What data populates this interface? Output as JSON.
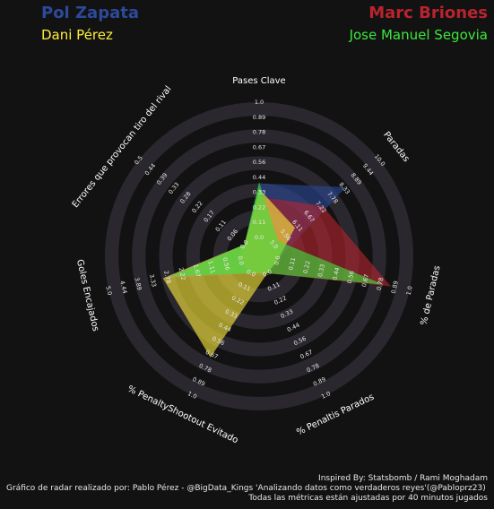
{
  "players": [
    {
      "name": "Pol Zapata",
      "color": "#2c4a9a"
    },
    {
      "name": "Marc Briones",
      "color": "#b8242e"
    },
    {
      "name": "Dani Pérez",
      "color": "#ffee3a"
    },
    {
      "name": "Jose Manuel Segovia",
      "color": "#3ce63c"
    }
  ],
  "footer": {
    "inspired": "Inspired By: Statsbomb / Rami Moghadam",
    "credit": "Gráfico de radar realizado por: Pablo Pérez - @BigData_Kings 'Analizando datos como verdaderos reyes'(@Pabloprz23)",
    "note": "Todas las métricas están ajustadas por 40 minutos jugados"
  },
  "chart_data": {
    "type": "radar",
    "axes": [
      {
        "label": "Pases Clave",
        "ticks": [
          "0.0",
          "0.11",
          "0.22",
          "0.33",
          "0.44",
          "0.56",
          "0.67",
          "0.78",
          "0.89",
          "1.0"
        ]
      },
      {
        "label": "Paradas",
        "ticks": [
          "5.0",
          "5.56",
          "6.11",
          "6.67",
          "7.22",
          "7.78",
          "8.33",
          "8.89",
          "9.44",
          "10.0"
        ]
      },
      {
        "label": "% de Paradas",
        "ticks": [
          "0.0",
          "0.11",
          "0.22",
          "0.33",
          "0.44",
          "0.56",
          "0.67",
          "0.78",
          "0.89",
          "1.0"
        ]
      },
      {
        "label": "% Penaltis Parados",
        "ticks": [
          "0.0",
          "0.11",
          "0.22",
          "0.33",
          "0.44",
          "0.56",
          "0.67",
          "0.78",
          "0.89",
          "1.0"
        ]
      },
      {
        "label": "% PenaltyShootout Evitado",
        "ticks": [
          "0.0",
          "0.11",
          "0.22",
          "0.33",
          "0.44",
          "0.56",
          "0.67",
          "0.78",
          "0.89",
          "1.0"
        ]
      },
      {
        "label": "Goles Encajados",
        "ticks": [
          "0.0",
          "0.56",
          "1.11",
          "1.67",
          "2.22",
          "2.78",
          "3.33",
          "3.89",
          "4.44",
          "5.0"
        ]
      },
      {
        "label": "Errores que provocan tiro del rival",
        "ticks": [
          "0.0",
          "0.06",
          "0.11",
          "0.17",
          "0.22",
          "0.28",
          "0.33",
          "0.39",
          "0.44",
          "0.5"
        ]
      }
    ],
    "series": [
      {
        "name": "Pol Zapata",
        "values": [
          0.4,
          8.4,
          0.0,
          0.0,
          0.0,
          2.9,
          0.0
        ],
        "color": "#2c4a9a"
      },
      {
        "name": "Marc Briones",
        "values": [
          0.3,
          7.3,
          0.86,
          0.0,
          0.0,
          0.0,
          0.0
        ],
        "color": "#b8242e"
      },
      {
        "name": "Dani Pérez",
        "values": [
          0.36,
          6.0,
          0.0,
          0.0,
          0.69,
          2.95,
          0.0
        ],
        "color": "#ffee3a"
      },
      {
        "name": "Jose Manuel Segovia",
        "values": [
          0.41,
          5.2,
          0.81,
          0.0,
          0.0,
          2.6,
          0.0
        ],
        "color": "#3ce63c"
      }
    ]
  }
}
